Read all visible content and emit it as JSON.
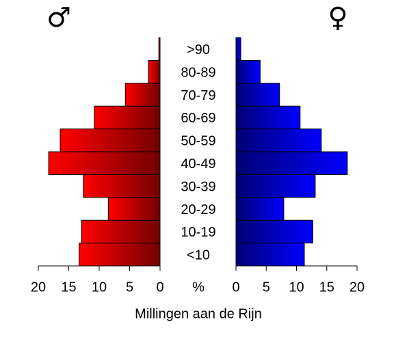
{
  "chart_data": {
    "type": "pyramid",
    "xlabel": "Millingen aan de Rijn",
    "center_label": "%",
    "categories": [
      "<10",
      "10-19",
      "20-29",
      "30-39",
      "40-49",
      "50-59",
      "60-69",
      "70-79",
      "80-89",
      ">90"
    ],
    "series": [
      {
        "name": "♂",
        "color": "#ff0000",
        "values": [
          13.3,
          12.9,
          8.5,
          12.6,
          18.3,
          16.4,
          10.8,
          5.7,
          1.9,
          0.2
        ]
      },
      {
        "name": "♀",
        "color": "#0000ff",
        "values": [
          11.3,
          12.7,
          7.9,
          13.1,
          18.4,
          14.1,
          10.6,
          7.2,
          4.0,
          0.8
        ]
      }
    ],
    "xlim": [
      0,
      20
    ],
    "xticks": [
      0,
      5,
      10,
      15,
      20
    ]
  }
}
